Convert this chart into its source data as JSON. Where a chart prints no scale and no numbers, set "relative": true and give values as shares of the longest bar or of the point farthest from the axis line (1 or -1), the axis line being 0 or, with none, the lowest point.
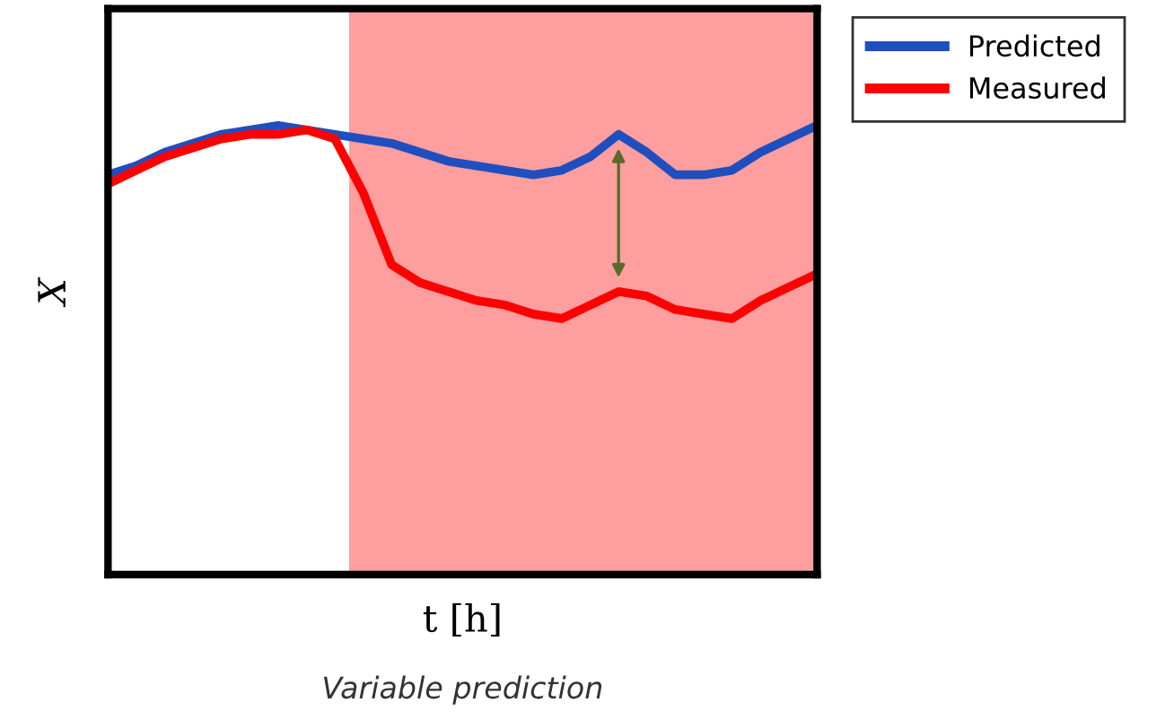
{
  "chart_data": {
    "type": "line",
    "relative": true,
    "xlabel": "t [h]",
    "ylabel": "X",
    "annotations": [
      "Variable prediction"
    ],
    "categories": [
      null,
      null,
      null,
      null,
      null,
      null,
      null,
      null,
      null,
      null,
      null,
      null,
      null,
      null,
      null,
      null,
      null,
      null,
      null,
      null,
      null,
      null,
      null,
      null,
      null,
      null
    ],
    "legend": "top right",
    "series": [
      {
        "name": "Predicted",
        "color": "#1f4fbf",
        "values": [
          0.89,
          0.91,
          0.94,
          0.96,
          0.98,
          0.99,
          1.0,
          0.99,
          0.98,
          0.97,
          0.96,
          0.94,
          0.92,
          0.91,
          0.9,
          0.89,
          0.9,
          0.93,
          0.98,
          0.94,
          0.89,
          0.89,
          0.9,
          0.94,
          0.97,
          1.0
        ]
      },
      {
        "name": "Measured",
        "color": "#ff0000",
        "values": [
          0.87,
          0.9,
          0.93,
          0.95,
          0.97,
          0.98,
          0.98,
          0.99,
          0.97,
          0.85,
          0.69,
          0.65,
          0.63,
          0.61,
          0.6,
          0.58,
          0.57,
          0.6,
          0.63,
          0.62,
          0.59,
          0.58,
          0.57,
          0.61,
          0.64,
          0.67
        ]
      }
    ]
  }
}
